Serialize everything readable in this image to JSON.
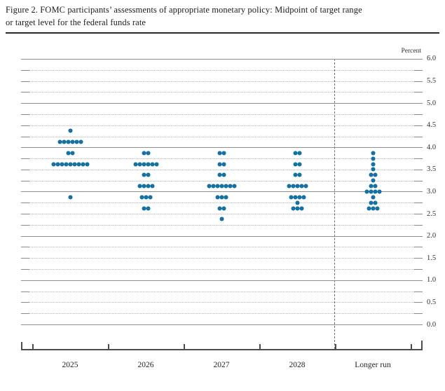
{
  "figure": {
    "title_line1": "Figure 2. FOMC participants’ assessments of appropriate monetary policy: Midpoint of target range",
    "title_line2": "or target level for the federal funds rate"
  },
  "chart_data": {
    "type": "scatter",
    "subtype": "fomc-dot-plot",
    "title": "FOMC participants’ assessments of appropriate monetary policy: Midpoint of target range or target level for the federal funds rate",
    "ylabel": "Percent",
    "ylim": [
      0.0,
      6.0
    ],
    "y_gridline_step": 0.25,
    "y_label_step": 0.5,
    "y_axis_labels": [
      "6.0",
      "5.5",
      "5.0",
      "4.5",
      "4.0",
      "3.5",
      "3.0",
      "2.5",
      "2.0",
      "1.5",
      "1.0",
      "0.5",
      "0.0"
    ],
    "grid": "dotted, solid at whole percents",
    "legend_position": "none",
    "divider_after_column": "2028",
    "columns": [
      {
        "label": "2025",
        "dots": [
          {
            "rate": 4.375,
            "count": 1
          },
          {
            "rate": 4.125,
            "count": 6
          },
          {
            "rate": 3.875,
            "count": 2
          },
          {
            "rate": 3.625,
            "count": 9
          },
          {
            "rate": 2.875,
            "count": 1
          }
        ]
      },
      {
        "label": "2026",
        "dots": [
          {
            "rate": 3.875,
            "count": 2
          },
          {
            "rate": 3.625,
            "count": 6
          },
          {
            "rate": 3.375,
            "count": 2
          },
          {
            "rate": 3.125,
            "count": 4
          },
          {
            "rate": 2.875,
            "count": 3
          },
          {
            "rate": 2.625,
            "count": 2
          }
        ]
      },
      {
        "label": "2027",
        "dots": [
          {
            "rate": 3.875,
            "count": 2
          },
          {
            "rate": 3.625,
            "count": 2
          },
          {
            "rate": 3.375,
            "count": 2
          },
          {
            "rate": 3.125,
            "count": 7
          },
          {
            "rate": 2.875,
            "count": 3
          },
          {
            "rate": 2.625,
            "count": 2
          },
          {
            "rate": 2.375,
            "count": 1
          }
        ]
      },
      {
        "label": "2028",
        "dots": [
          {
            "rate": 3.875,
            "count": 2
          },
          {
            "rate": 3.625,
            "count": 2
          },
          {
            "rate": 3.375,
            "count": 2
          },
          {
            "rate": 3.125,
            "count": 5
          },
          {
            "rate": 2.875,
            "count": 4
          },
          {
            "rate": 2.75,
            "count": 1
          },
          {
            "rate": 2.625,
            "count": 3
          }
        ]
      },
      {
        "label": "Longer run",
        "dots": [
          {
            "rate": 3.875,
            "count": 1
          },
          {
            "rate": 3.75,
            "count": 1
          },
          {
            "rate": 3.625,
            "count": 1
          },
          {
            "rate": 3.5,
            "count": 1
          },
          {
            "rate": 3.375,
            "count": 2
          },
          {
            "rate": 3.25,
            "count": 1
          },
          {
            "rate": 3.125,
            "count": 2
          },
          {
            "rate": 3.0,
            "count": 4
          },
          {
            "rate": 2.875,
            "count": 1
          },
          {
            "rate": 2.75,
            "count": 2
          },
          {
            "rate": 2.625,
            "count": 3
          }
        ]
      }
    ],
    "colors": {
      "dot": "#1173a6",
      "dot_outline": "#0c628e",
      "grid_dotted": "#b4b4b4",
      "grid_solid": "#8e8e8e",
      "axis": "#4d4d4d",
      "text": "#262626"
    }
  }
}
